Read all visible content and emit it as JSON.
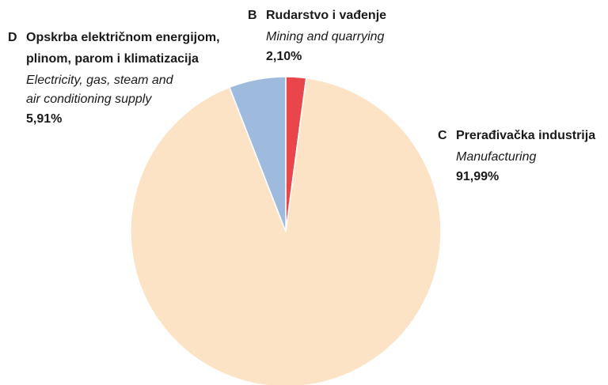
{
  "chart_data": {
    "type": "pie",
    "codes": [
      "B",
      "C",
      "D"
    ],
    "categories": [
      [
        "Rudarstvo i vađenje"
      ],
      [
        "Prerađivačka industrija"
      ],
      [
        "Opskrba električnom energijom,",
        "plinom, parom i klimatizacija"
      ]
    ],
    "categories_en": [
      [
        "Mining and quarrying"
      ],
      [
        "Manufacturing"
      ],
      [
        "Electricity, gas, steam and",
        "air conditioning supply"
      ]
    ],
    "values": [
      2.1,
      91.99,
      5.91
    ],
    "value_labels": [
      "2,10%",
      "91,99%",
      "5,91%"
    ],
    "colors": [
      "#e8464b",
      "#fde3c6",
      "#9ebbde"
    ]
  }
}
